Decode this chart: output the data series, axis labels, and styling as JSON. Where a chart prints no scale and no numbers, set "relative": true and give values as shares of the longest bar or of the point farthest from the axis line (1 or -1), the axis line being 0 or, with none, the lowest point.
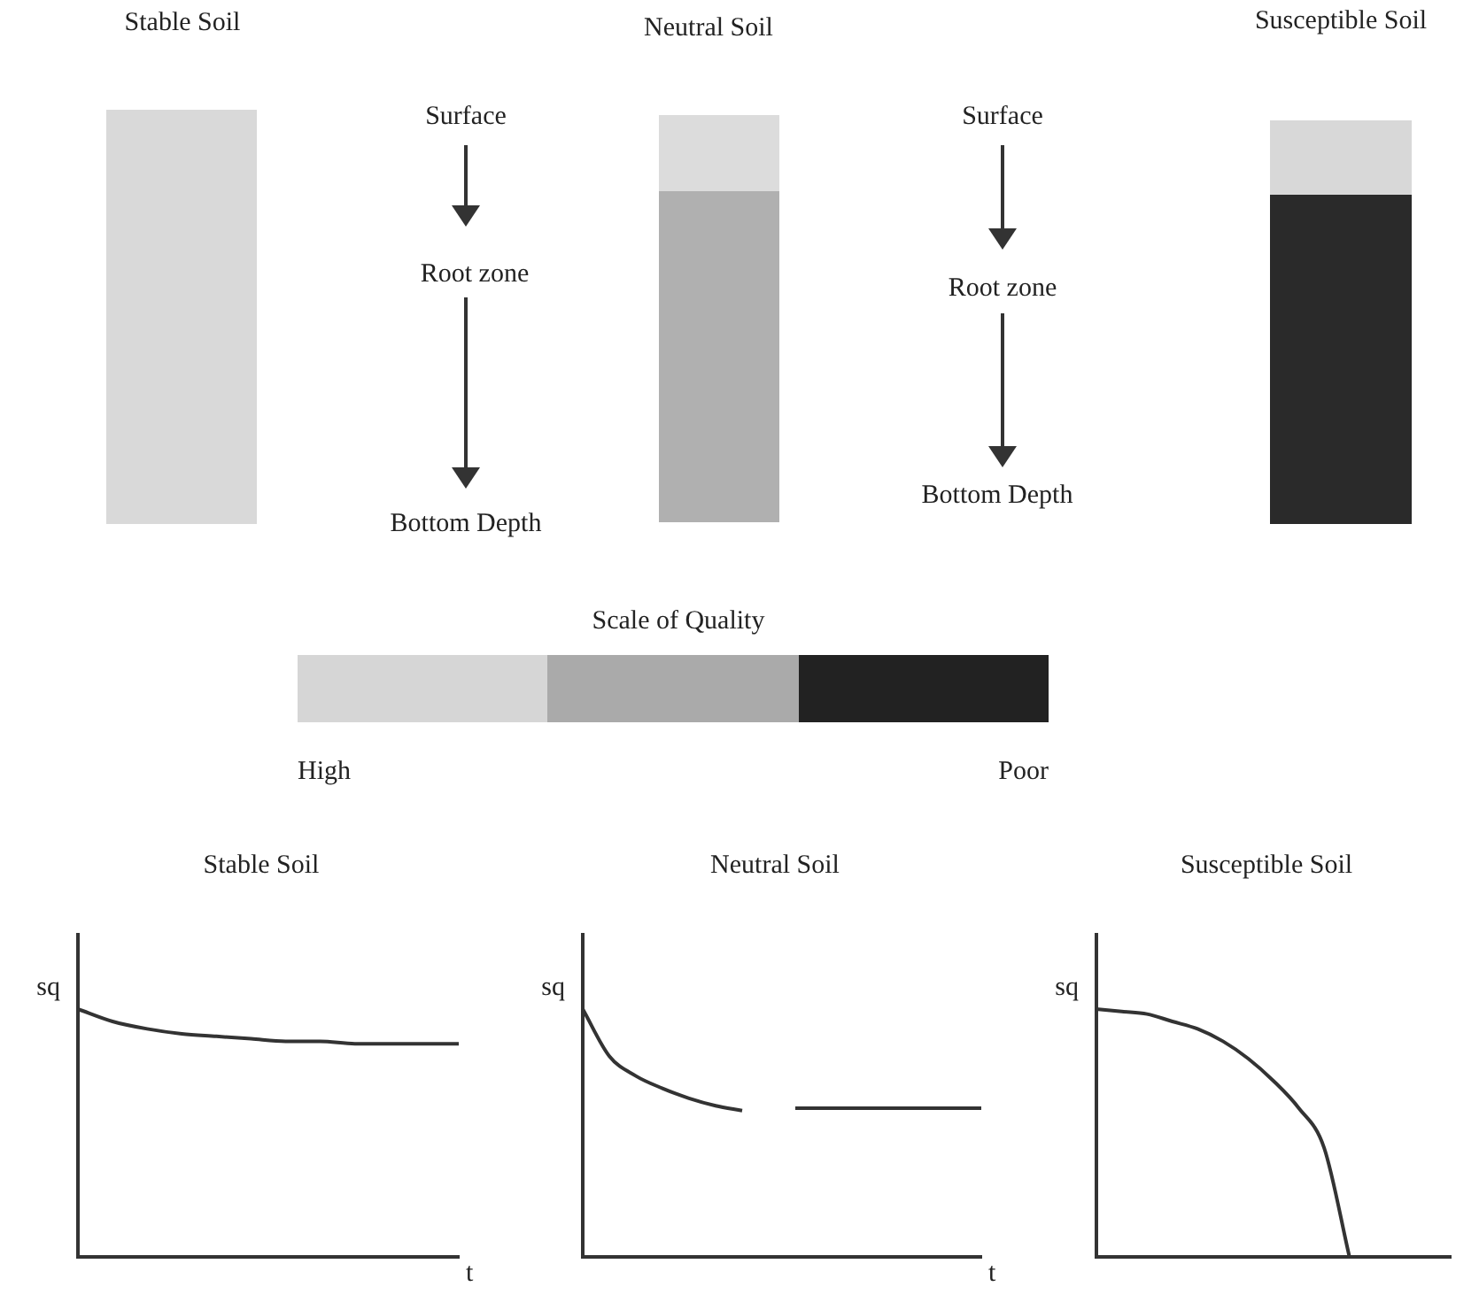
{
  "chart_data": [
    {
      "type": "other",
      "annotations": [
        "Stable Soil",
        "Neutral Soil",
        "Susceptible Soil",
        "Surface",
        "Root zone",
        "Bottom Depth",
        "Surface",
        "Root zone",
        "Bottom Depth",
        "Scale of Quality",
        "High",
        "Poor"
      ]
    },
    {
      "type": "line",
      "title": "Stable Soil",
      "xlabel": "t",
      "ylabel": "sq",
      "relative": true,
      "categories": [
        null,
        null,
        null,
        null,
        null,
        null,
        null,
        null,
        null,
        null,
        null,
        null
      ],
      "series": [
        {
          "color": "#333333",
          "values": [
            1,
            0.95,
            0.92,
            0.9,
            0.89,
            0.88,
            0.87,
            0.87,
            0.86,
            0.86,
            0.86,
            0.86
          ]
        }
      ]
    },
    {
      "type": "line",
      "title": "Neutral Soil",
      "xlabel": "t",
      "ylabel": "sq",
      "relative": true,
      "categories": [
        null,
        null,
        null,
        null,
        null,
        null,
        null,
        null,
        null,
        null,
        null,
        null,
        null,
        null,
        null,
        null
      ],
      "series": [
        {
          "color": "#333333",
          "values": [
            1,
            0.81,
            0.73,
            0.68,
            0.64,
            0.61,
            0.59,
            null,
            0.6,
            0.6,
            0.6,
            0.6,
            0.6,
            0.6,
            0.6,
            0.6
          ]
        }
      ]
    },
    {
      "type": "line",
      "title": "Susceptible Soil",
      "ylabel": "sq",
      "relative": true,
      "categories": [
        null,
        null,
        null,
        null,
        null,
        null,
        null,
        null,
        null,
        null,
        null,
        null,
        null,
        null,
        null
      ],
      "series": [
        {
          "color": "#333333",
          "values": [
            1,
            0.99,
            0.98,
            0.95,
            0.92,
            0.87,
            0.8,
            0.71,
            0.6,
            0.44,
            0,
            null,
            null,
            null,
            null
          ]
        }
      ]
    }
  ]
}
